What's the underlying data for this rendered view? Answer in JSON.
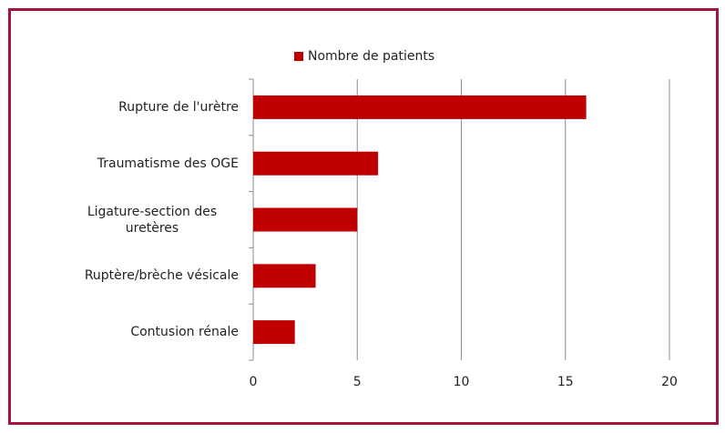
{
  "chart_data": {
    "type": "bar",
    "orientation": "horizontal",
    "categories": [
      "Rupture de l'urètre",
      "Traumatisme des OGE",
      "Ligature-section des uretères",
      "Ruptère/brèche vésicale",
      "Contusion rénale"
    ],
    "series": [
      {
        "name": "Nombre de patients",
        "color": "#c00000",
        "values": [
          16,
          6,
          5,
          3,
          2
        ]
      }
    ],
    "xlim": [
      0,
      20
    ],
    "xticks": [
      0,
      5,
      10,
      15,
      20
    ],
    "grid": true,
    "legend": "top"
  }
}
